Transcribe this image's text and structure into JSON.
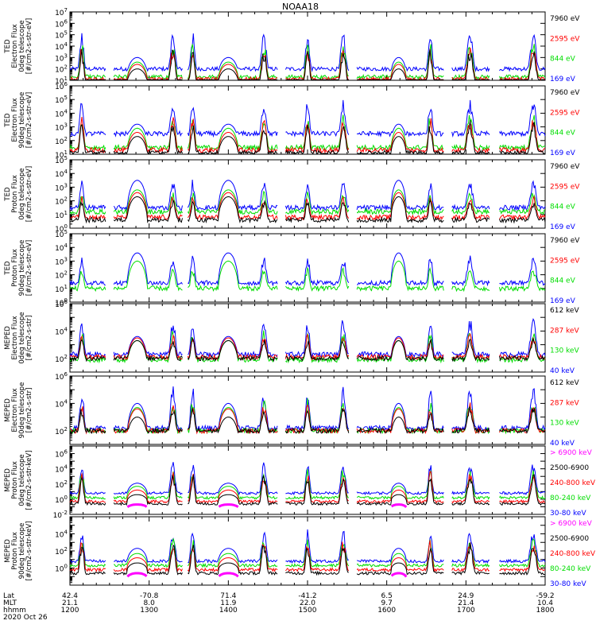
{
  "title": "NOAA18",
  "colors": {
    "blue": "#0000ff",
    "red": "#ff0000",
    "green": "#00dd00",
    "black": "#000000",
    "magenta": "#ff00ff",
    "frame": "#000000"
  },
  "chart_data": [
    {
      "type": "line",
      "ylabel": [
        "TED",
        "Electron Flux",
        "0deg telescope",
        "[#/cm2-s-str-eV]"
      ],
      "ylim_exp": [
        1,
        7
      ],
      "tick_labels": [
        "10^1",
        "10^2",
        "10^3",
        "10^4",
        "10^5",
        "10^6",
        "10^7"
      ],
      "series": [
        {
          "name": "7960 eV",
          "color": "black"
        },
        {
          "name": "2595 eV",
          "color": "red"
        },
        {
          "name": "844 eV",
          "color": "green"
        },
        {
          "name": "169 eV",
          "color": "blue"
        }
      ],
      "levels": {
        "blue": 2.0,
        "green": 1.3,
        "red": 1.1,
        "black": 0.9
      },
      "arcs": {
        "blue": 3.0,
        "green": 2.6,
        "red": 2.4,
        "black": 2.0
      },
      "spike": 5.3
    },
    {
      "type": "line",
      "ylabel": [
        "TED",
        "Electron Flux",
        "90deg telescope",
        "[#/cm2-s-str-eV]"
      ],
      "ylim_exp": [
        1,
        6
      ],
      "tick_labels": [
        "10^1",
        "10^2",
        "10^3",
        "10^4",
        "10^5",
        "10^6"
      ],
      "series": [
        {
          "name": "7960 eV",
          "color": "black"
        },
        {
          "name": "2595 eV",
          "color": "red"
        },
        {
          "name": "844 eV",
          "color": "green"
        },
        {
          "name": "169 eV",
          "color": "blue"
        }
      ],
      "levels": {
        "blue": 2.5,
        "green": 1.5,
        "red": 1.3,
        "black": 1.1
      },
      "arcs": {
        "blue": 3.2,
        "green": 2.9,
        "red": 2.6,
        "black": 2.3
      },
      "spike": 5.0
    },
    {
      "type": "line",
      "ylabel": [
        "TED",
        "Proton Flux",
        "0deg telescope",
        "[#/cm2-s-str-eV]"
      ],
      "ylim_exp": [
        0,
        5
      ],
      "tick_labels": [
        "10^0",
        "10^1",
        "10^2",
        "10^3",
        "10^4",
        "10^5"
      ],
      "series": [
        {
          "name": "7960 eV",
          "color": "black"
        },
        {
          "name": "2595 eV",
          "color": "red"
        },
        {
          "name": "844 eV",
          "color": "green"
        },
        {
          "name": "169 eV",
          "color": "blue"
        }
      ],
      "levels": {
        "blue": 1.5,
        "green": 1.2,
        "red": 0.8,
        "black": 0.6
      },
      "arcs": {
        "blue": 3.5,
        "green": 2.8,
        "red": 2.6,
        "black": 2.3
      },
      "spike": 3.6
    },
    {
      "type": "line",
      "ylabel": [
        "TED",
        "Proton Flux",
        "90deg telescope",
        "[#/cm2-s-str-eV]"
      ],
      "ylim_exp": [
        0,
        5
      ],
      "tick_labels": [
        "10^0",
        "10^1",
        "10^2",
        "10^3",
        "10^4",
        "10^5"
      ],
      "series": [
        {
          "name": "7960 eV",
          "color": "black"
        },
        {
          "name": "2595 eV",
          "color": "red"
        },
        {
          "name": "844 eV",
          "color": "green"
        },
        {
          "name": "169 eV",
          "color": "blue"
        }
      ],
      "levels": {
        "blue": 1.4,
        "green": 1.0,
        "red": 0.0,
        "black": 0.0
      },
      "arcs": {
        "blue": 3.6,
        "green": 3.0,
        "red": 0.0,
        "black": 0.0
      },
      "spike": 3.5
    },
    {
      "type": "line",
      "ylabel": [
        "MEPED",
        "Electron Flux",
        "0deg telescope",
        "[#/cm2-s-str]"
      ],
      "ylim_exp": [
        1,
        6
      ],
      "tick_labels": [
        "10^2",
        "10^4",
        "10^6"
      ],
      "tick_values": [
        2,
        4,
        6
      ],
      "series": [
        {
          "name": "612 keV",
          "color": "black"
        },
        {
          "name": "287 keV",
          "color": "red"
        },
        {
          "name": "130 keV",
          "color": "green"
        },
        {
          "name": "40 keV",
          "color": "blue"
        }
      ],
      "levels": {
        "blue": 2.3,
        "green": 1.9,
        "red": 2.1,
        "black": 2.0
      },
      "arcs": {
        "blue": 3.6,
        "green": 3.3,
        "red": 3.5,
        "black": 3.3
      },
      "spike": 5.0
    },
    {
      "type": "line",
      "ylabel": [
        "MEPED",
        "Electron Flux",
        "90deg telescope",
        "[#/cm2-s-str]"
      ],
      "ylim_exp": [
        1,
        6
      ],
      "tick_labels": [
        "10^2",
        "10^4",
        "10^6"
      ],
      "tick_values": [
        2,
        4,
        6
      ],
      "series": [
        {
          "name": "612 keV",
          "color": "black"
        },
        {
          "name": "287 keV",
          "color": "red"
        },
        {
          "name": "130 keV",
          "color": "green"
        },
        {
          "name": "40 keV",
          "color": "blue"
        }
      ],
      "levels": {
        "blue": 2.2,
        "green": 2.0,
        "red": 2.0,
        "black": 2.0
      },
      "arcs": {
        "blue": 4.0,
        "green": 3.7,
        "red": 3.6,
        "black": 3.0
      },
      "spike": 5.3
    },
    {
      "type": "line",
      "ylabel": [
        "MEPED",
        "Proton Flux",
        "0deg telescope",
        "[#/cm2-s-str-keV]"
      ],
      "ylim_exp": [
        -2,
        7
      ],
      "tick_labels": [
        "10^-2",
        "10^0",
        "10^2",
        "10^4",
        "10^6"
      ],
      "tick_values": [
        -2,
        0,
        2,
        4,
        6
      ],
      "series": [
        {
          "name": "> 6900 keV",
          "color": "magenta"
        },
        {
          "name": "2500-6900",
          "color": "black"
        },
        {
          "name": "240-800 keV",
          "color": "red"
        },
        {
          "name": "80-240 keV",
          "color": "green"
        },
        {
          "name": "30-80 keV",
          "color": "blue"
        }
      ],
      "levels": {
        "blue": 0.8,
        "green": 0.2,
        "red": -0.3,
        "black": -0.6
      },
      "arcs": {
        "blue": 2.1,
        "green": 1.7,
        "red": 1.2,
        "black": 0.6,
        "magenta": -0.7
      },
      "spike": 5.0
    },
    {
      "type": "line",
      "ylabel": [
        "MEPED",
        "Proton Flux",
        "90deg telescope",
        "[#/cm2-s-str-keV]"
      ],
      "ylim_exp": [
        -2,
        6
      ],
      "tick_labels": [
        "10^0",
        "10^2",
        "10^4"
      ],
      "tick_values": [
        0,
        2,
        4
      ],
      "series": [
        {
          "name": "> 6900 keV",
          "color": "magenta"
        },
        {
          "name": "2500-6900",
          "color": "black"
        },
        {
          "name": "240-800 keV",
          "color": "red"
        },
        {
          "name": "80-240 keV",
          "color": "green"
        },
        {
          "name": "30-80 keV",
          "color": "blue"
        }
      ],
      "levels": {
        "blue": 0.8,
        "green": 0.3,
        "red": -0.2,
        "black": -0.6
      },
      "arcs": {
        "blue": 2.3,
        "green": 1.7,
        "red": 1.2,
        "black": 0.6,
        "magenta": -0.6
      },
      "spike": 4.6
    }
  ],
  "xaxis": {
    "row_labels": [
      "Lat",
      "MLT",
      "hhmm"
    ],
    "date": "2020 Oct 26",
    "ticks": [
      {
        "lat": "42.4",
        "mlt": "21.1",
        "hhmm": "1200"
      },
      {
        "lat": "-70.8",
        "mlt": "8.0",
        "hhmm": "1300"
      },
      {
        "lat": "71.4",
        "mlt": "11.9",
        "hhmm": "1400"
      },
      {
        "lat": "-41.2",
        "mlt": "22.0",
        "hhmm": "1500"
      },
      {
        "lat": "6.5",
        "mlt": "9.7",
        "hhmm": "1600"
      },
      {
        "lat": "24.9",
        "mlt": "21.4",
        "hhmm": "1700"
      },
      {
        "lat": "-59.2",
        "mlt": "10.4",
        "hhmm": "1800"
      }
    ]
  }
}
